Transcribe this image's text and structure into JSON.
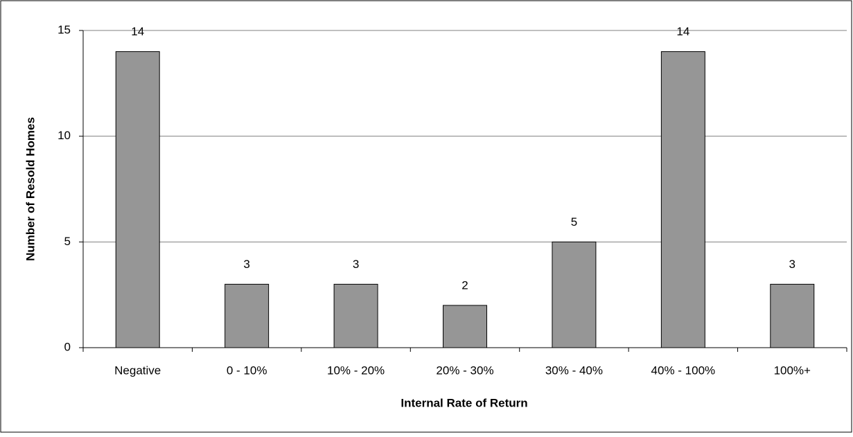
{
  "chart_data": {
    "type": "bar",
    "x_label": "Internal Rate of Return",
    "y_label": "Number of Resold Homes",
    "categories": [
      "Negative",
      "0 - 10%",
      "10% - 20%",
      "20% - 30%",
      "30% - 40%",
      "40% - 100%",
      "100%+"
    ],
    "values": [
      14,
      3,
      3,
      2,
      5,
      14,
      3
    ],
    "color": "#969696",
    "ylim": [
      0,
      15
    ],
    "yticks": [
      0,
      5,
      10,
      15
    ],
    "grid": true
  }
}
